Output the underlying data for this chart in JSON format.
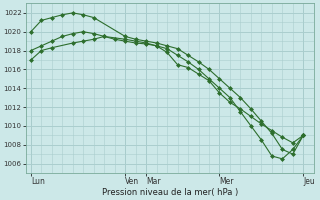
{
  "background_color": "#cce8e8",
  "grid_color": "#aacece",
  "line_color": "#2d6e2d",
  "marker_color": "#2d6e2d",
  "title": "Pression niveau de la mer( hPa )",
  "ylabel_values": [
    1006,
    1008,
    1010,
    1012,
    1014,
    1016,
    1018,
    1020,
    1022
  ],
  "ylim": [
    1005,
    1023
  ],
  "x_tick_labels": [
    "Lun",
    "Ven",
    "Mar",
    "Mer",
    "Jeu"
  ],
  "x_tick_positions": [
    0,
    9,
    11,
    18,
    26
  ],
  "xlim": [
    -0.5,
    27
  ],
  "series1_x": [
    0,
    1,
    2,
    4,
    5,
    6,
    7,
    9,
    10,
    11,
    12,
    13,
    14,
    15,
    16,
    17,
    18,
    19,
    20,
    21,
    22,
    23,
    24,
    25,
    26
  ],
  "series1_y": [
    1017.0,
    1018.0,
    1018.3,
    1018.8,
    1019.0,
    1019.2,
    1019.5,
    1019.2,
    1019.0,
    1018.8,
    1018.5,
    1017.8,
    1016.5,
    1016.2,
    1015.5,
    1014.8,
    1013.5,
    1012.5,
    1011.8,
    1011.0,
    1010.2,
    1009.5,
    1008.8,
    1008.2,
    1009.0
  ],
  "series2_x": [
    0,
    1,
    2,
    3,
    4,
    5,
    6,
    9,
    10,
    11,
    12,
    13,
    14,
    15,
    16,
    17,
    18,
    19,
    20,
    21,
    22,
    23,
    24,
    25,
    26
  ],
  "series2_y": [
    1020.0,
    1021.2,
    1021.5,
    1021.8,
    1022.0,
    1021.8,
    1021.5,
    1019.5,
    1019.2,
    1019.0,
    1018.8,
    1018.5,
    1018.2,
    1017.5,
    1016.8,
    1016.0,
    1015.0,
    1014.0,
    1013.0,
    1011.8,
    1010.5,
    1009.2,
    1007.5,
    1007.0,
    1009.0
  ],
  "series3_x": [
    0,
    1,
    2,
    3,
    4,
    5,
    6,
    7,
    8,
    9,
    10,
    11,
    12,
    13,
    14,
    15,
    16,
    17,
    18,
    19,
    20,
    21,
    22,
    23,
    24,
    25,
    26
  ],
  "series3_y": [
    1018.0,
    1018.5,
    1019.0,
    1019.5,
    1019.8,
    1020.0,
    1019.8,
    1019.5,
    1019.2,
    1019.0,
    1018.8,
    1018.7,
    1018.5,
    1018.2,
    1017.5,
    1016.8,
    1016.0,
    1015.0,
    1014.0,
    1013.0,
    1011.5,
    1010.0,
    1008.5,
    1006.8,
    1006.5,
    1007.5,
    1009.0
  ]
}
